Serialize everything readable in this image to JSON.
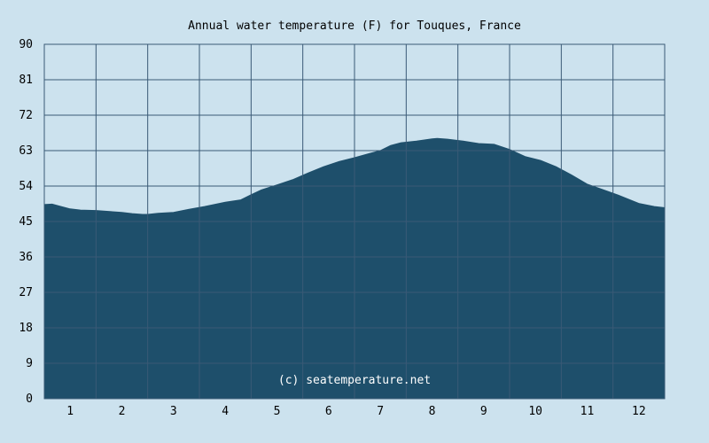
{
  "chart_data": {
    "type": "area",
    "title": "Annual water temperature (F) for Touques, France",
    "watermark": "(c) seatemperature.net",
    "xlabel": "",
    "ylabel": "",
    "x_ticks": [
      "1",
      "2",
      "3",
      "4",
      "5",
      "6",
      "7",
      "8",
      "9",
      "10",
      "11",
      "12"
    ],
    "y_ticks": [
      "0",
      "9",
      "18",
      "27",
      "36",
      "45",
      "54",
      "63",
      "72",
      "81",
      "90"
    ],
    "ylim": [
      0,
      90
    ],
    "xlim": [
      0.5,
      12.5
    ],
    "grid": true,
    "colors": {
      "background": "#cce2ee",
      "fill": "#1e4f6b",
      "grid": "#3a5a76",
      "plot_border": "#3a5a76"
    },
    "series": [
      {
        "x": [
          0.5,
          0.65,
          0.8,
          1.0,
          1.2,
          1.5,
          1.8,
          2.0,
          2.2,
          2.4,
          2.5,
          2.7,
          3.0,
          3.3,
          3.6,
          4.0,
          4.3,
          4.5,
          4.7,
          5.0,
          5.3,
          5.6,
          5.9,
          6.2,
          6.5,
          6.8,
          7.0,
          7.2,
          7.4,
          7.7,
          8.0,
          8.1,
          8.3,
          8.6,
          8.9,
          9.2,
          9.5,
          9.8,
          10.1,
          10.4,
          10.7,
          11.0,
          11.3,
          11.6,
          12.0,
          12.3,
          12.5
        ],
        "values": [
          49.3,
          49.4,
          48.9,
          48.2,
          47.9,
          47.8,
          47.5,
          47.3,
          47.0,
          46.8,
          46.8,
          47.1,
          47.3,
          48.1,
          48.8,
          49.9,
          50.5,
          51.8,
          53.0,
          54.3,
          55.6,
          57.3,
          58.9,
          60.2,
          61.2,
          62.3,
          63.0,
          64.3,
          65.0,
          65.4,
          66.0,
          66.1,
          65.9,
          65.4,
          64.8,
          64.6,
          63.3,
          61.5,
          60.5,
          58.9,
          56.8,
          54.5,
          53.1,
          51.7,
          49.6,
          48.8,
          48.5
        ]
      }
    ]
  }
}
